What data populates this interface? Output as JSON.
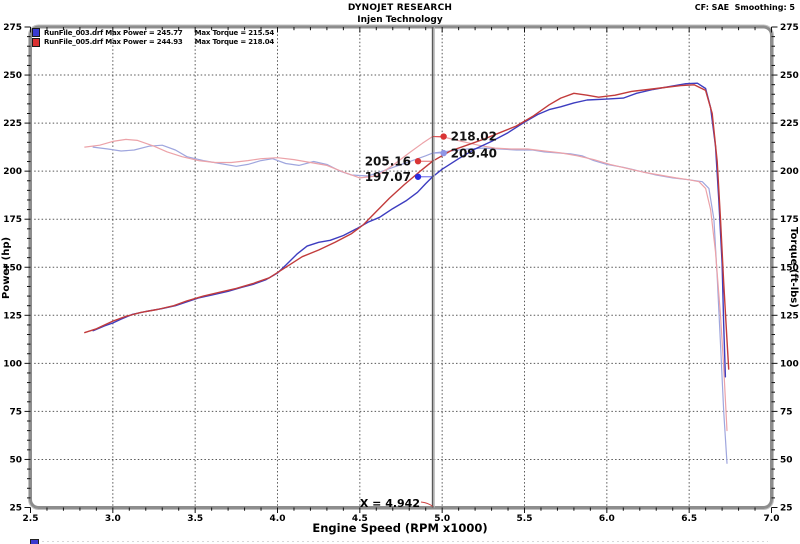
{
  "header": {
    "title": "DYNOJET RESEARCH",
    "subtitle": "Injen Technology",
    "settings": "CF: SAE  Smoothing: 5"
  },
  "legend": [
    {
      "file": "RunFile_003.drf",
      "power_text": "RunFile_003.drf Max Power = 245.77",
      "torque_text": "Max Torque = 215.54",
      "swatch_color": "#3a3ad0",
      "max_power": 245.77,
      "max_torque": 215.54
    },
    {
      "file": "RunFile_005.drf",
      "power_text": "RunFile_005.drf Max Power = 244.93",
      "torque_text": "Max Torque = 218.04",
      "swatch_color": "#d93030",
      "max_power": 244.93,
      "max_torque": 218.04
    }
  ],
  "chart_data": {
    "type": "line",
    "xlabel": "Engine Speed (RPM x1000)",
    "ylabel_left": "Power (hp)",
    "ylabel_right": "Torque (ft-lbs)",
    "xlim": [
      2.5,
      7.0
    ],
    "ylim": [
      25,
      275
    ],
    "x_ticks": [
      2.5,
      3.0,
      3.5,
      4.0,
      4.5,
      5.0,
      5.5,
      6.0,
      6.5,
      7.0
    ],
    "y_ticks": [
      275,
      250,
      225,
      200,
      175,
      150,
      125,
      100,
      75,
      50,
      25
    ],
    "x_minor_step": 0.1,
    "y_minor_step": 5,
    "grid": true,
    "cursor": {
      "x": 4.942,
      "label": "X = 4.942"
    },
    "annotations": [
      {
        "label": "218.02",
        "rpm": 4.942,
        "value": 218.02,
        "color": "#d93535",
        "dot_side": "right"
      },
      {
        "label": "209.40",
        "rpm": 4.942,
        "value": 209.4,
        "color": "#8f96e6",
        "dot_side": "right"
      },
      {
        "label": "205.16",
        "rpm": 4.942,
        "value": 205.16,
        "color": "#d93535",
        "dot_side": "left"
      },
      {
        "label": "197.07",
        "rpm": 4.942,
        "value": 197.07,
        "color": "#2b2bdf",
        "dot_side": "left"
      }
    ],
    "series": [
      {
        "name": "RunFile_003 Torque",
        "axis": "torque",
        "color": "#9fa6de",
        "width": 1.2,
        "points": [
          [
            2.88,
            212.5
          ],
          [
            2.97,
            211.5
          ],
          [
            3.05,
            210.5
          ],
          [
            3.13,
            211
          ],
          [
            3.22,
            213
          ],
          [
            3.3,
            213.5
          ],
          [
            3.38,
            211
          ],
          [
            3.45,
            207.5
          ],
          [
            3.55,
            205.5
          ],
          [
            3.65,
            204
          ],
          [
            3.75,
            202.5
          ],
          [
            3.82,
            203.5
          ],
          [
            3.9,
            205.5
          ],
          [
            3.97,
            206.5
          ],
          [
            4.05,
            204
          ],
          [
            4.13,
            203
          ],
          [
            4.22,
            205
          ],
          [
            4.3,
            203.5
          ],
          [
            4.38,
            200
          ],
          [
            4.45,
            198
          ],
          [
            4.55,
            197.5
          ],
          [
            4.62,
            199.5
          ],
          [
            4.72,
            202.5
          ],
          [
            4.82,
            205.5
          ],
          [
            4.9,
            208
          ],
          [
            4.942,
            209.4
          ],
          [
            5.05,
            210.5
          ],
          [
            5.15,
            211.5
          ],
          [
            5.25,
            212
          ],
          [
            5.35,
            211.5
          ],
          [
            5.45,
            211
          ],
          [
            5.55,
            211
          ],
          [
            5.62,
            210
          ],
          [
            5.7,
            209.5
          ],
          [
            5.78,
            209
          ],
          [
            5.85,
            208
          ],
          [
            5.92,
            205.5
          ],
          [
            6.0,
            203.5
          ],
          [
            6.1,
            202
          ],
          [
            6.2,
            200
          ],
          [
            6.3,
            198
          ],
          [
            6.4,
            196.5
          ],
          [
            6.5,
            195.5
          ],
          [
            6.58,
            194.5
          ],
          [
            6.62,
            191
          ],
          [
            6.65,
            175
          ],
          [
            6.67,
            145
          ],
          [
            6.69,
            110
          ],
          [
            6.71,
            75
          ],
          [
            6.73,
            48
          ]
        ]
      },
      {
        "name": "RunFile_005 Torque",
        "axis": "torque",
        "color": "#eca2a8",
        "width": 1.2,
        "points": [
          [
            2.83,
            212.5
          ],
          [
            2.92,
            213.5
          ],
          [
            3.0,
            215.5
          ],
          [
            3.08,
            216.5
          ],
          [
            3.15,
            216
          ],
          [
            3.25,
            213
          ],
          [
            3.33,
            210
          ],
          [
            3.42,
            207.5
          ],
          [
            3.52,
            205.5
          ],
          [
            3.62,
            204.5
          ],
          [
            3.72,
            204.5
          ],
          [
            3.82,
            205.5
          ],
          [
            3.9,
            206.5
          ],
          [
            4.0,
            207
          ],
          [
            4.1,
            206
          ],
          [
            4.2,
            204.5
          ],
          [
            4.3,
            203
          ],
          [
            4.4,
            199.5
          ],
          [
            4.5,
            196.5
          ],
          [
            4.6,
            197.5
          ],
          [
            4.7,
            203
          ],
          [
            4.8,
            209.5
          ],
          [
            4.88,
            214.5
          ],
          [
            4.942,
            218.02
          ],
          [
            5.02,
            217.5
          ],
          [
            5.12,
            215.5
          ],
          [
            5.22,
            213.5
          ],
          [
            5.32,
            212
          ],
          [
            5.42,
            211.5
          ],
          [
            5.52,
            211.5
          ],
          [
            5.62,
            210.5
          ],
          [
            5.72,
            209.5
          ],
          [
            5.82,
            208
          ],
          [
            5.92,
            206
          ],
          [
            6.02,
            203.5
          ],
          [
            6.12,
            201.5
          ],
          [
            6.22,
            199.5
          ],
          [
            6.32,
            198
          ],
          [
            6.42,
            196.5
          ],
          [
            6.5,
            195.5
          ],
          [
            6.56,
            194.5
          ],
          [
            6.6,
            191
          ],
          [
            6.63,
            180
          ],
          [
            6.66,
            158
          ],
          [
            6.69,
            125
          ],
          [
            6.71,
            98
          ],
          [
            6.73,
            65
          ]
        ]
      },
      {
        "name": "RunFile_003 Power",
        "axis": "power",
        "color": "#3d3dc0",
        "width": 1.4,
        "points": [
          [
            2.88,
            117
          ],
          [
            2.95,
            119.5
          ],
          [
            3.0,
            121
          ],
          [
            3.05,
            123
          ],
          [
            3.12,
            125.5
          ],
          [
            3.2,
            127
          ],
          [
            3.3,
            128.5
          ],
          [
            3.38,
            130
          ],
          [
            3.45,
            132
          ],
          [
            3.52,
            134
          ],
          [
            3.6,
            135.5
          ],
          [
            3.7,
            137.5
          ],
          [
            3.78,
            139.5
          ],
          [
            3.85,
            141
          ],
          [
            3.93,
            143.5
          ],
          [
            4.0,
            147
          ],
          [
            4.05,
            151
          ],
          [
            4.12,
            157
          ],
          [
            4.18,
            161
          ],
          [
            4.25,
            163
          ],
          [
            4.32,
            164
          ],
          [
            4.4,
            166.5
          ],
          [
            4.48,
            170
          ],
          [
            4.55,
            173.5
          ],
          [
            4.62,
            176
          ],
          [
            4.7,
            180.5
          ],
          [
            4.78,
            184.5
          ],
          [
            4.85,
            189
          ],
          [
            4.9,
            193.5
          ],
          [
            4.942,
            197.07
          ],
          [
            5.0,
            201
          ],
          [
            5.1,
            206.5
          ],
          [
            5.2,
            211.5
          ],
          [
            5.3,
            215.5
          ],
          [
            5.4,
            220
          ],
          [
            5.5,
            225.5
          ],
          [
            5.58,
            229.5
          ],
          [
            5.65,
            232
          ],
          [
            5.72,
            233.5
          ],
          [
            5.8,
            235.5
          ],
          [
            5.88,
            237
          ],
          [
            6.0,
            237.5
          ],
          [
            6.1,
            238
          ],
          [
            6.18,
            240.5
          ],
          [
            6.28,
            242.5
          ],
          [
            6.38,
            244
          ],
          [
            6.48,
            245.5
          ],
          [
            6.55,
            245.77
          ],
          [
            6.6,
            243
          ],
          [
            6.63,
            233
          ],
          [
            6.66,
            213
          ],
          [
            6.68,
            185
          ],
          [
            6.7,
            152
          ],
          [
            6.71,
            120
          ],
          [
            6.72,
            93
          ]
        ]
      },
      {
        "name": "RunFile_005 Power",
        "axis": "power",
        "color": "#c23b3b",
        "width": 1.4,
        "points": [
          [
            2.83,
            116
          ],
          [
            2.9,
            118
          ],
          [
            3.0,
            122
          ],
          [
            3.08,
            124.5
          ],
          [
            3.17,
            126.5
          ],
          [
            3.27,
            128
          ],
          [
            3.37,
            130
          ],
          [
            3.45,
            132.5
          ],
          [
            3.55,
            135
          ],
          [
            3.65,
            137
          ],
          [
            3.75,
            139
          ],
          [
            3.85,
            141.5
          ],
          [
            3.95,
            144.5
          ],
          [
            4.05,
            150
          ],
          [
            4.15,
            155.5
          ],
          [
            4.25,
            159
          ],
          [
            4.35,
            163
          ],
          [
            4.45,
            167.5
          ],
          [
            4.52,
            172
          ],
          [
            4.6,
            179
          ],
          [
            4.68,
            186
          ],
          [
            4.77,
            193
          ],
          [
            4.86,
            199.5
          ],
          [
            4.942,
            205.16
          ],
          [
            5.05,
            210.5
          ],
          [
            5.15,
            213.5
          ],
          [
            5.25,
            216.5
          ],
          [
            5.35,
            220
          ],
          [
            5.45,
            223.5
          ],
          [
            5.55,
            228.5
          ],
          [
            5.65,
            234.5
          ],
          [
            5.72,
            238
          ],
          [
            5.8,
            240.5
          ],
          [
            5.88,
            239.5
          ],
          [
            5.95,
            238.5
          ],
          [
            6.05,
            239.5
          ],
          [
            6.15,
            241.5
          ],
          [
            6.25,
            242.5
          ],
          [
            6.35,
            243.5
          ],
          [
            6.45,
            244.5
          ],
          [
            6.53,
            244.93
          ],
          [
            6.6,
            242
          ],
          [
            6.64,
            230
          ],
          [
            6.67,
            205
          ],
          [
            6.69,
            175
          ],
          [
            6.71,
            142
          ],
          [
            6.73,
            112
          ],
          [
            6.74,
            97
          ]
        ]
      }
    ]
  },
  "colors": {
    "frame": "#8d8d8d",
    "frame_outer": "#c0c0c0",
    "grid": "#3c3c3c",
    "tick": "#111111",
    "cursor_line": "#5a5a5a",
    "leader": "#d04545",
    "annotation_text": "#111111"
  }
}
